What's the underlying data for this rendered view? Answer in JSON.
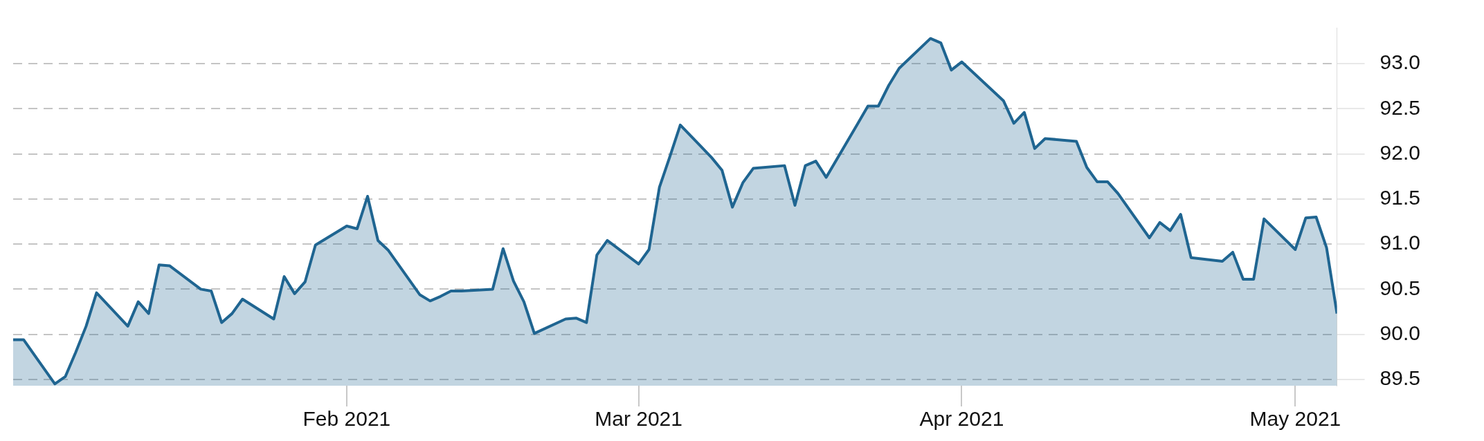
{
  "chart_data": {
    "type": "area",
    "x": [
      "2020-12-31",
      "2021-01-01",
      "2021-01-04",
      "2021-01-05",
      "2021-01-06",
      "2021-01-07",
      "2021-01-08",
      "2021-01-11",
      "2021-01-12",
      "2021-01-13",
      "2021-01-14",
      "2021-01-15",
      "2021-01-18",
      "2021-01-19",
      "2021-01-20",
      "2021-01-21",
      "2021-01-22",
      "2021-01-25",
      "2021-01-26",
      "2021-01-27",
      "2021-01-28",
      "2021-01-29",
      "2021-02-01",
      "2021-02-02",
      "2021-02-03",
      "2021-02-04",
      "2021-02-05",
      "2021-02-08",
      "2021-02-09",
      "2021-02-10",
      "2021-02-11",
      "2021-02-12",
      "2021-02-15",
      "2021-02-16",
      "2021-02-17",
      "2021-02-18",
      "2021-02-19",
      "2021-02-22",
      "2021-02-23",
      "2021-02-24",
      "2021-02-25",
      "2021-02-26",
      "2021-03-01",
      "2021-03-02",
      "2021-03-03",
      "2021-03-04",
      "2021-03-05",
      "2021-03-08",
      "2021-03-09",
      "2021-03-10",
      "2021-03-11",
      "2021-03-12",
      "2021-03-15",
      "2021-03-16",
      "2021-03-17",
      "2021-03-18",
      "2021-03-19",
      "2021-03-22",
      "2021-03-23",
      "2021-03-24",
      "2021-03-25",
      "2021-03-26",
      "2021-03-29",
      "2021-03-30",
      "2021-03-31",
      "2021-04-01",
      "2021-04-05",
      "2021-04-06",
      "2021-04-07",
      "2021-04-08",
      "2021-04-09",
      "2021-04-12",
      "2021-04-13",
      "2021-04-14",
      "2021-04-15",
      "2021-04-16",
      "2021-04-19",
      "2021-04-20",
      "2021-04-21",
      "2021-04-22",
      "2021-04-23",
      "2021-04-26",
      "2021-04-27",
      "2021-04-28",
      "2021-04-29",
      "2021-04-30",
      "2021-05-03",
      "2021-05-04",
      "2021-05-05",
      "2021-05-06",
      "2021-05-07"
    ],
    "values": [
      89.94,
      89.94,
      89.45,
      89.53,
      89.8,
      90.09,
      90.46,
      90.09,
      90.36,
      90.23,
      90.77,
      90.76,
      90.5,
      90.48,
      90.13,
      90.23,
      90.39,
      90.17,
      90.64,
      90.45,
      90.58,
      90.99,
      91.2,
      91.17,
      91.53,
      91.04,
      90.93,
      90.44,
      90.37,
      90.42,
      90.48,
      90.48,
      90.5,
      90.95,
      90.59,
      90.36,
      90.01,
      90.17,
      90.18,
      90.13,
      90.88,
      91.04,
      90.78,
      90.94,
      91.63,
      91.97,
      92.32,
      91.96,
      91.82,
      91.41,
      91.68,
      91.84,
      91.87,
      91.43,
      91.87,
      91.92,
      91.74,
      92.33,
      92.53,
      92.53,
      92.76,
      92.95,
      93.28,
      93.23,
      92.93,
      93.02,
      92.59,
      92.34,
      92.46,
      92.06,
      92.17,
      92.14,
      91.85,
      91.69,
      91.69,
      91.56,
      91.07,
      91.24,
      91.15,
      91.33,
      90.85,
      90.81,
      90.91,
      90.61,
      90.61,
      91.28,
      90.94,
      91.29,
      91.3,
      90.96,
      90.23
    ],
    "color": "#1f6591",
    "ylim": [
      89.43,
      93.4
    ],
    "yticks": [
      89.5,
      {
        "value": 90,
        "label": "90.0"
      },
      90.5,
      {
        "value": 91,
        "label": "91.0"
      },
      91.5,
      {
        "value": 92,
        "label": "92.0"
      },
      92.5,
      {
        "value": 93,
        "label": "93.0"
      }
    ],
    "xlim": [
      "2020-12-31",
      "2021-05-07"
    ],
    "xticks": [
      {
        "value": "2021-02-01",
        "label": "Feb 2021"
      },
      {
        "value": "2021-03-01",
        "label": "Mar 2021"
      },
      {
        "value": "2021-04-01",
        "label": "Apr 2021"
      },
      {
        "value": "2021-05-03",
        "label": "May 2021"
      }
    ],
    "grid": "y",
    "legend": false
  }
}
